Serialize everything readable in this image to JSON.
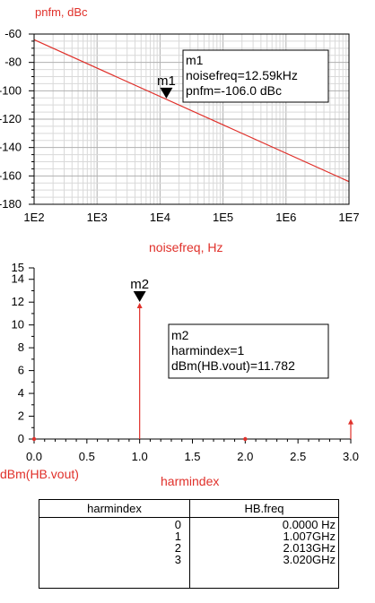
{
  "chart_data": [
    {
      "type": "line",
      "ylabel": "pnfm, dBc",
      "xlabel": "noisefreq, Hz",
      "xscale": "log",
      "xlim": [
        100,
        10000000
      ],
      "ylim": [
        -180,
        -60
      ],
      "xticks": [
        "1E2",
        "1E3",
        "1E4",
        "1E5",
        "1E6",
        "1E7"
      ],
      "yticks": [
        "-60",
        "-80",
        "-100",
        "-120",
        "-140",
        "-160",
        "-180"
      ],
      "grid": true,
      "series": [
        {
          "x": [
            100,
            10000000
          ],
          "y": [
            -64.0,
            -164.0
          ],
          "color": "#e0302a"
        }
      ],
      "marker": {
        "name": "m1",
        "x": 12590,
        "y": -106.0,
        "lines": [
          "m1",
          "noisefreq=12.59kHz",
          "pnfm=-106.0 dBc"
        ]
      }
    },
    {
      "type": "bar",
      "ylabel": "dBm(HB.vout)",
      "xlabel": "harmindex",
      "xlim": [
        0,
        3
      ],
      "ylim": [
        0,
        15
      ],
      "xticks": [
        "0.0",
        "0.5",
        "1.0",
        "1.5",
        "2.0",
        "2.5",
        "3.0"
      ],
      "yticks": [
        "0",
        "2",
        "4",
        "6",
        "8",
        "10",
        "12",
        "14",
        "15"
      ],
      "grid": false,
      "x": [
        0,
        1,
        2,
        3
      ],
      "values": [
        0,
        11.782,
        0,
        1.6
      ],
      "color": "#e0302a",
      "marker": {
        "name": "m2",
        "x": 1,
        "y": 11.782,
        "lines": [
          "m2",
          "harmindex=1",
          "dBm(HB.vout)=11.782"
        ]
      }
    }
  ],
  "table": {
    "headers": [
      "harmindex",
      "HB.freq"
    ],
    "rows": [
      [
        "0",
        "0.0000 Hz"
      ],
      [
        "1",
        "1.007GHz"
      ],
      [
        "2",
        "2.013GHz"
      ],
      [
        "3",
        "3.020GHz"
      ]
    ]
  }
}
